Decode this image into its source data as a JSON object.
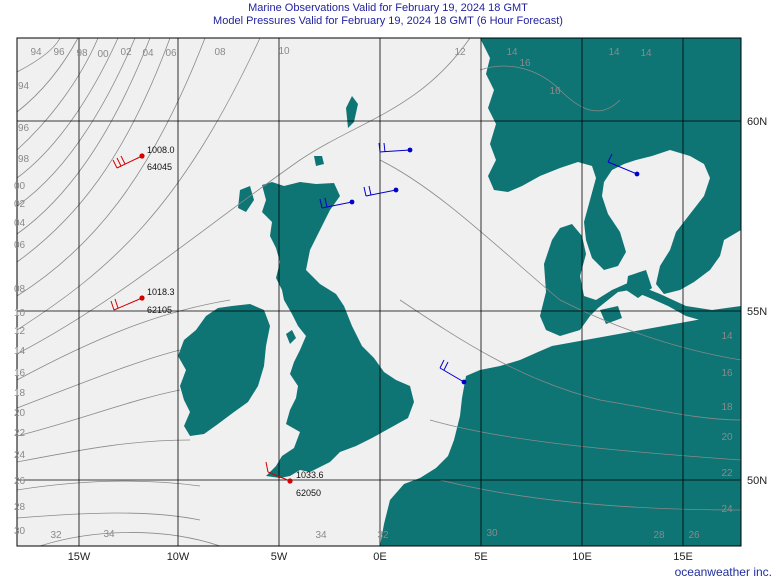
{
  "header": {
    "line1": "Marine Observations Valid for February 19, 2024 18 GMT",
    "line2": "Model Pressures Valid for February 19, 2024 18 GMT (6 Hour Forecast)"
  },
  "axes": {
    "lon_labels": [
      "15W",
      "10W",
      "5W",
      "0E",
      "5E",
      "10E",
      "15E"
    ],
    "lat_labels": [
      "60N",
      "55N",
      "50N"
    ]
  },
  "isobar_labels": {
    "top": [
      "94",
      "96",
      "98",
      "00",
      "02",
      "04",
      "06",
      "08",
      "10",
      "12"
    ],
    "left": [
      "94",
      "96",
      "98",
      "00",
      "02",
      "04",
      "06",
      "08",
      "10",
      "12",
      "14",
      "16",
      "18",
      "20",
      "22",
      "24",
      "26",
      "28",
      "30"
    ],
    "bottom": [
      "32",
      "34",
      "34",
      "32",
      "30",
      "28",
      "26"
    ],
    "right": [
      "14",
      "16",
      "18",
      "20",
      "22",
      "24"
    ],
    "scandinavia": [
      "14",
      "16",
      "16",
      "14",
      "14"
    ]
  },
  "observations": [
    {
      "pressure": "1008.0",
      "station": "64045",
      "color": "#d40000"
    },
    {
      "pressure": "1018.3",
      "station": "62105",
      "color": "#d40000"
    },
    {
      "pressure": "1033.6",
      "station": "62050",
      "color": "#d40000"
    },
    {
      "pressure": "",
      "station": "",
      "color": "#0000cc"
    },
    {
      "pressure": "",
      "station": "",
      "color": "#0000cc"
    },
    {
      "pressure": "",
      "station": "",
      "color": "#0000cc"
    },
    {
      "pressure": "",
      "station": "",
      "color": "#0000cc"
    },
    {
      "pressure": "",
      "station": "",
      "color": "#0000cc"
    }
  ],
  "colors": {
    "land": "#0e7474",
    "sea": "#f0f0f0",
    "isobar": "#8a8a8a",
    "grid": "#000000"
  },
  "credit": "oceanweather inc."
}
